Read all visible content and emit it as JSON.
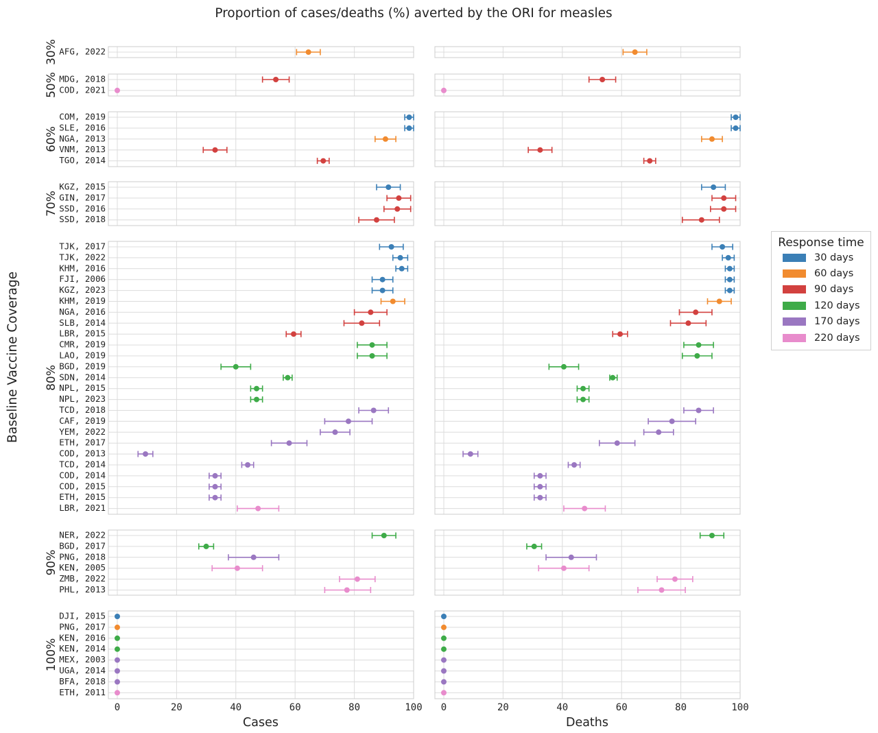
{
  "chart_data": {
    "type": "errorbar-dot",
    "title": "Proportion of cases/deaths (%) averted by the ORI for measles",
    "ylabel": "Baseline Vaccine Coverage",
    "xlim": [
      0,
      100
    ],
    "xticks": [
      0,
      20,
      40,
      60,
      80,
      100
    ],
    "grid": true,
    "legend_title": "Response time",
    "legend_position": "right",
    "series": [
      {
        "name": "30 days",
        "color": "#3b7fb6"
      },
      {
        "name": "60 days",
        "color": "#f18b2f"
      },
      {
        "name": "90 days",
        "color": "#d2413f"
      },
      {
        "name": "120 days",
        "color": "#3eab48"
      },
      {
        "name": "170 days",
        "color": "#9a77c1"
      },
      {
        "name": "220 days",
        "color": "#e88ccc"
      }
    ],
    "panels": [
      {
        "xlabel": "Cases"
      },
      {
        "xlabel": "Deaths"
      }
    ],
    "groups": [
      {
        "coverage": "30%",
        "rows": [
          {
            "label": "AFG, 2022",
            "response": "60 days",
            "cases": [
              64.5,
              60.5,
              68.5
            ],
            "deaths": [
              64.5,
              60.5,
              68.5
            ]
          }
        ]
      },
      {
        "coverage": "50%",
        "rows": [
          {
            "label": "MDG, 2018",
            "response": "90 days",
            "cases": [
              53.5,
              49,
              58
            ],
            "deaths": [
              53.5,
              49,
              58
            ]
          },
          {
            "label": "COD, 2021",
            "response": "220 days",
            "cases": [
              0,
              0,
              0
            ],
            "deaths": [
              0,
              0,
              0
            ]
          }
        ]
      },
      {
        "coverage": "60%",
        "rows": [
          {
            "label": "COM, 2019",
            "response": "30 days",
            "cases": [
              98.5,
              97,
              100
            ],
            "deaths": [
              98.5,
              97,
              100
            ]
          },
          {
            "label": "SLE, 2016",
            "response": "30 days",
            "cases": [
              98.5,
              97,
              100
            ],
            "deaths": [
              98.5,
              97,
              100
            ]
          },
          {
            "label": "NGA, 2013",
            "response": "60 days",
            "cases": [
              90.5,
              87,
              94
            ],
            "deaths": [
              90.5,
              87,
              94
            ]
          },
          {
            "label": "VNM, 2013",
            "response": "90 days",
            "cases": [
              33,
              29,
              37
            ],
            "deaths": [
              32.5,
              28.5,
              36.5
            ]
          },
          {
            "label": "TGO, 2014",
            "response": "90 days",
            "cases": [
              69.5,
              67.5,
              71.5
            ],
            "deaths": [
              69.5,
              67.5,
              71.5
            ]
          }
        ]
      },
      {
        "coverage": "70%",
        "rows": [
          {
            "label": "KGZ, 2015",
            "response": "30 days",
            "cases": [
              91.5,
              87.5,
              95.5
            ],
            "deaths": [
              91,
              87,
              95
            ]
          },
          {
            "label": "GIN, 2017",
            "response": "90 days",
            "cases": [
              95,
              91,
              99
            ],
            "deaths": [
              94.5,
              90.5,
              98.5
            ]
          },
          {
            "label": "SSD, 2016",
            "response": "90 days",
            "cases": [
              94.5,
              90,
              99
            ],
            "deaths": [
              94.5,
              90,
              98.5
            ]
          },
          {
            "label": "SSD, 2018",
            "response": "90 days",
            "cases": [
              87.5,
              81.5,
              93.5
            ],
            "deaths": [
              87,
              80.5,
              93
            ]
          }
        ]
      },
      {
        "coverage": "80%",
        "rows": [
          {
            "label": "TJK, 2017",
            "response": "30 days",
            "cases": [
              92.5,
              88.5,
              96.5
            ],
            "deaths": [
              94,
              90.5,
              97.5
            ]
          },
          {
            "label": "TJK, 2022",
            "response": "30 days",
            "cases": [
              95.5,
              93,
              98
            ],
            "deaths": [
              96,
              94,
              98
            ]
          },
          {
            "label": "KHM, 2016",
            "response": "30 days",
            "cases": [
              96,
              94,
              98
            ],
            "deaths": [
              96.5,
              95,
              98
            ]
          },
          {
            "label": "FJI, 2006",
            "response": "30 days",
            "cases": [
              89.5,
              86,
              93
            ],
            "deaths": [
              96.5,
              95,
              98
            ]
          },
          {
            "label": "KGZ, 2023",
            "response": "30 days",
            "cases": [
              89.5,
              86,
              93
            ],
            "deaths": [
              96.5,
              95,
              98
            ]
          },
          {
            "label": "KHM, 2019",
            "response": "60 days",
            "cases": [
              93,
              89,
              97
            ],
            "deaths": [
              93,
              89,
              97
            ]
          },
          {
            "label": "NGA, 2016",
            "response": "90 days",
            "cases": [
              85.5,
              80,
              91
            ],
            "deaths": [
              85,
              79.5,
              90.5
            ]
          },
          {
            "label": "SLB, 2014",
            "response": "90 days",
            "cases": [
              82.5,
              76.5,
              88.5
            ],
            "deaths": [
              82.5,
              76.5,
              88.5
            ]
          },
          {
            "label": "LBR, 2015",
            "response": "90 days",
            "cases": [
              59.5,
              57,
              62
            ],
            "deaths": [
              59.5,
              57,
              62
            ]
          },
          {
            "label": "CMR, 2019",
            "response": "120 days",
            "cases": [
              86,
              81,
              91
            ],
            "deaths": [
              86,
              81,
              91
            ]
          },
          {
            "label": "LAO, 2019",
            "response": "120 days",
            "cases": [
              86,
              81,
              91
            ],
            "deaths": [
              85.5,
              80.5,
              90.5
            ]
          },
          {
            "label": "BGD, 2019",
            "response": "120 days",
            "cases": [
              40,
              35,
              45
            ],
            "deaths": [
              40.5,
              35.5,
              45.5
            ]
          },
          {
            "label": "SDN, 2014",
            "response": "120 days",
            "cases": [
              57.5,
              56,
              59
            ],
            "deaths": [
              57,
              56,
              58.5
            ]
          },
          {
            "label": "NPL, 2015",
            "response": "120 days",
            "cases": [
              47,
              45,
              49
            ],
            "deaths": [
              47,
              45,
              49
            ]
          },
          {
            "label": "NPL, 2023",
            "response": "120 days",
            "cases": [
              47,
              45,
              49
            ],
            "deaths": [
              47,
              45,
              49
            ]
          },
          {
            "label": "TCD, 2018",
            "response": "170 days",
            "cases": [
              86.5,
              81.5,
              91.5
            ],
            "deaths": [
              86,
              81,
              91
            ]
          },
          {
            "label": "CAF, 2019",
            "response": "170 days",
            "cases": [
              78,
              70,
              86
            ],
            "deaths": [
              77,
              69,
              85
            ]
          },
          {
            "label": "YEM, 2022",
            "response": "170 days",
            "cases": [
              73.5,
              68.5,
              78.5
            ],
            "deaths": [
              72.5,
              67.5,
              77.5
            ]
          },
          {
            "label": "ETH, 2017",
            "response": "170 days",
            "cases": [
              58,
              52,
              64
            ],
            "deaths": [
              58.5,
              52.5,
              64.5
            ]
          },
          {
            "label": "COD, 2013",
            "response": "170 days",
            "cases": [
              9.5,
              7,
              12
            ],
            "deaths": [
              9,
              6.5,
              11.5
            ]
          },
          {
            "label": "TCD, 2014",
            "response": "170 days",
            "cases": [
              44,
              42,
              46
            ],
            "deaths": [
              44,
              42,
              46
            ]
          },
          {
            "label": "COD, 2014",
            "response": "170 days",
            "cases": [
              33,
              31,
              35
            ],
            "deaths": [
              32.5,
              30.5,
              34.5
            ]
          },
          {
            "label": "COD, 2015",
            "response": "170 days",
            "cases": [
              33,
              31,
              35
            ],
            "deaths": [
              32.5,
              30.5,
              34.5
            ]
          },
          {
            "label": "ETH, 2015",
            "response": "170 days",
            "cases": [
              33,
              31,
              35
            ],
            "deaths": [
              32.5,
              30.5,
              34.5
            ]
          },
          {
            "label": "LBR, 2021",
            "response": "220 days",
            "cases": [
              47.5,
              40.5,
              54.5
            ],
            "deaths": [
              47.5,
              40.5,
              54.5
            ]
          }
        ]
      },
      {
        "coverage": "90%",
        "rows": [
          {
            "label": "NER, 2022",
            "response": "120 days",
            "cases": [
              90,
              86,
              94
            ],
            "deaths": [
              90.5,
              86.5,
              94.5
            ]
          },
          {
            "label": "BGD, 2017",
            "response": "120 days",
            "cases": [
              30,
              27.5,
              32.5
            ],
            "deaths": [
              30.5,
              28,
              33
            ]
          },
          {
            "label": "PNG, 2018",
            "response": "170 days",
            "cases": [
              46,
              37.5,
              54.5
            ],
            "deaths": [
              43,
              34.5,
              51.5
            ]
          },
          {
            "label": "KEN, 2005",
            "response": "220 days",
            "cases": [
              40.5,
              32,
              49
            ],
            "deaths": [
              40.5,
              32,
              49
            ]
          },
          {
            "label": "ZMB, 2022",
            "response": "220 days",
            "cases": [
              81,
              75,
              87
            ],
            "deaths": [
              78,
              72,
              84
            ]
          },
          {
            "label": "PHL, 2013",
            "response": "220 days",
            "cases": [
              77.5,
              70,
              85.5
            ],
            "deaths": [
              73.5,
              65.5,
              81.5
            ]
          }
        ]
      },
      {
        "coverage": "100%",
        "rows": [
          {
            "label": "DJI, 2015",
            "response": "30 days",
            "cases": [
              0,
              0,
              0
            ],
            "deaths": [
              0,
              0,
              0
            ]
          },
          {
            "label": "PNG, 2017",
            "response": "60 days",
            "cases": [
              0,
              0,
              0
            ],
            "deaths": [
              0,
              0,
              0
            ]
          },
          {
            "label": "KEN, 2016",
            "response": "120 days",
            "cases": [
              0,
              0,
              0
            ],
            "deaths": [
              0,
              0,
              0
            ]
          },
          {
            "label": "KEN, 2014",
            "response": "120 days",
            "cases": [
              0,
              0,
              0
            ],
            "deaths": [
              0,
              0,
              0
            ]
          },
          {
            "label": "MEX, 2003",
            "response": "170 days",
            "cases": [
              0,
              0,
              0
            ],
            "deaths": [
              0,
              0,
              0
            ]
          },
          {
            "label": "UGA, 2014",
            "response": "170 days",
            "cases": [
              0,
              0,
              0
            ],
            "deaths": [
              0,
              0,
              0
            ]
          },
          {
            "label": "BFA, 2018",
            "response": "170 days",
            "cases": [
              0,
              0,
              0
            ],
            "deaths": [
              0,
              0,
              0
            ]
          },
          {
            "label": "ETH, 2011",
            "response": "220 days",
            "cases": [
              0,
              0,
              0
            ],
            "deaths": [
              0,
              0,
              0
            ]
          }
        ]
      }
    ]
  }
}
